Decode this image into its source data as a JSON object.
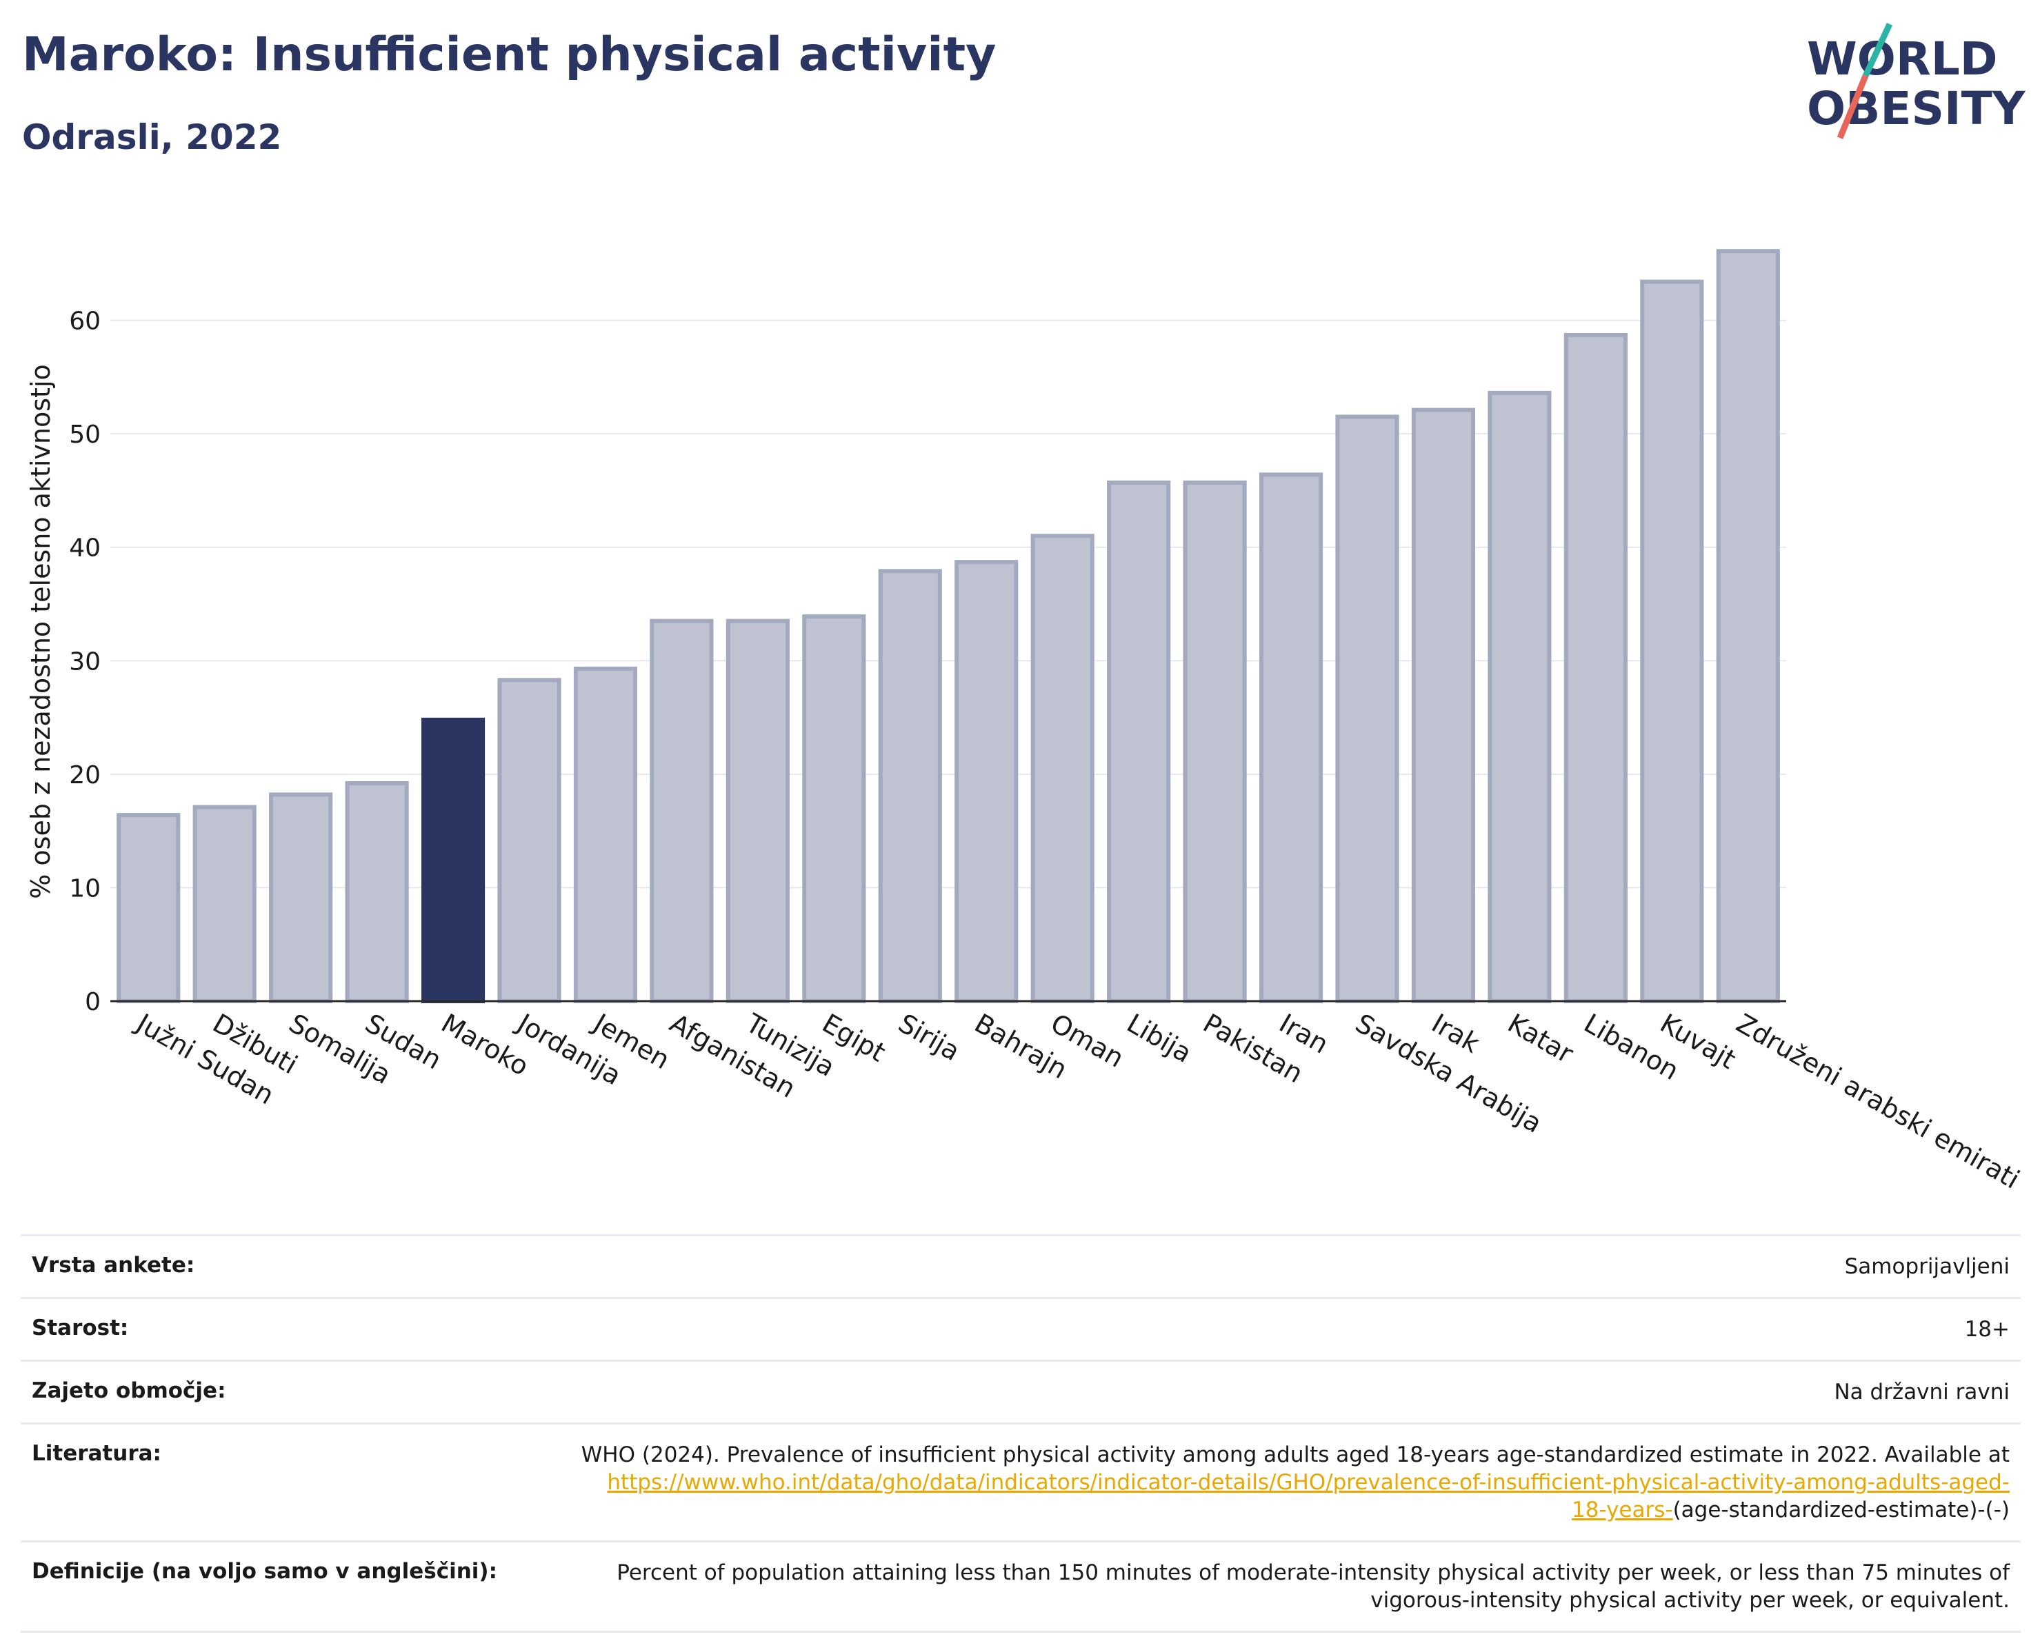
{
  "header": {
    "title": "Maroko: Insufficient physical activity",
    "subtitle": "Odrasli, 2022"
  },
  "logo": {
    "line1": "WORLD",
    "line2": "OBESITY"
  },
  "chart_data": {
    "type": "bar",
    "categories": [
      "Južni Sudan",
      "Džibuti",
      "Somalija",
      "Sudan",
      "Maroko",
      "Jordanija",
      "Jemen",
      "Afganistan",
      "Tunizija",
      "Egipt",
      "Sirija",
      "Bahrajn",
      "Oman",
      "Libija",
      "Pakistan",
      "Iran",
      "Savdska Arabija",
      "Irak",
      "Katar",
      "Libanon",
      "Kuvajt",
      "Združeni arabski emirati"
    ],
    "values": [
      16.4,
      17.1,
      18.2,
      19.2,
      24.8,
      28.3,
      29.3,
      33.5,
      33.5,
      33.9,
      37.9,
      38.7,
      41.0,
      45.7,
      45.7,
      46.4,
      51.5,
      52.1,
      53.6,
      58.7,
      63.4,
      66.1
    ],
    "highlight": "Maroko",
    "xlabel": "",
    "ylabel": "% oseb z nezadostno telesno aktivnostjo",
    "ylim": [
      0,
      70
    ],
    "yticks": [
      0,
      10,
      20,
      30,
      40,
      50,
      60
    ],
    "grid": true,
    "colors": {
      "bar": "#bfc3d1",
      "bar_edge": "#a3a9bf",
      "highlight": "#2b3561"
    }
  },
  "info": {
    "rows": [
      {
        "label": "Vrsta ankete:",
        "value": "Samoprijavljeni"
      },
      {
        "label": "Starost:",
        "value": "18+"
      },
      {
        "label": "Zajeto območje:",
        "value": "Na državni ravni"
      }
    ],
    "literature": {
      "label": "Literatura:",
      "text": "WHO (2024). Prevalence of insufficient physical activity among adults aged 18-years age-standardized estimate in 2022. Available at",
      "link": "https://www.who.int/data/gho/data/indicators/indicator-details/GHO/prevalence-of-insufficient-physical-activity-among-adults-aged-18-years-",
      "suffix": "(age-standardized-estimate)-(-)"
    },
    "definition": {
      "label": "Definicije (na voljo samo v angleščini):",
      "value": "Percent of population attaining less than 150 minutes of moderate-intensity physical activity per week, or less than 75 minutes of vigorous-intensity physical activity per week, or equivalent."
    }
  }
}
